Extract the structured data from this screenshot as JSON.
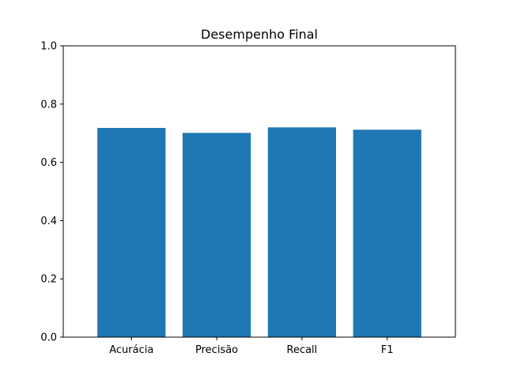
{
  "chart_data": {
    "type": "bar",
    "title": "Desempenho Final",
    "xlabel": "",
    "ylabel": "",
    "categories": [
      "Acurácia",
      "Precisão",
      "Recall",
      "F1"
    ],
    "values": [
      0.718,
      0.701,
      0.72,
      0.712
    ],
    "ylim": [
      0,
      1.0
    ],
    "yticks": [
      0.0,
      0.2,
      0.4,
      0.6,
      0.8,
      1.0
    ],
    "ytick_labels": [
      "0.0",
      "0.2",
      "0.4",
      "0.6",
      "0.8",
      "1.0"
    ],
    "bar_color": "#1f77b4",
    "grid": false,
    "legend": "none"
  }
}
